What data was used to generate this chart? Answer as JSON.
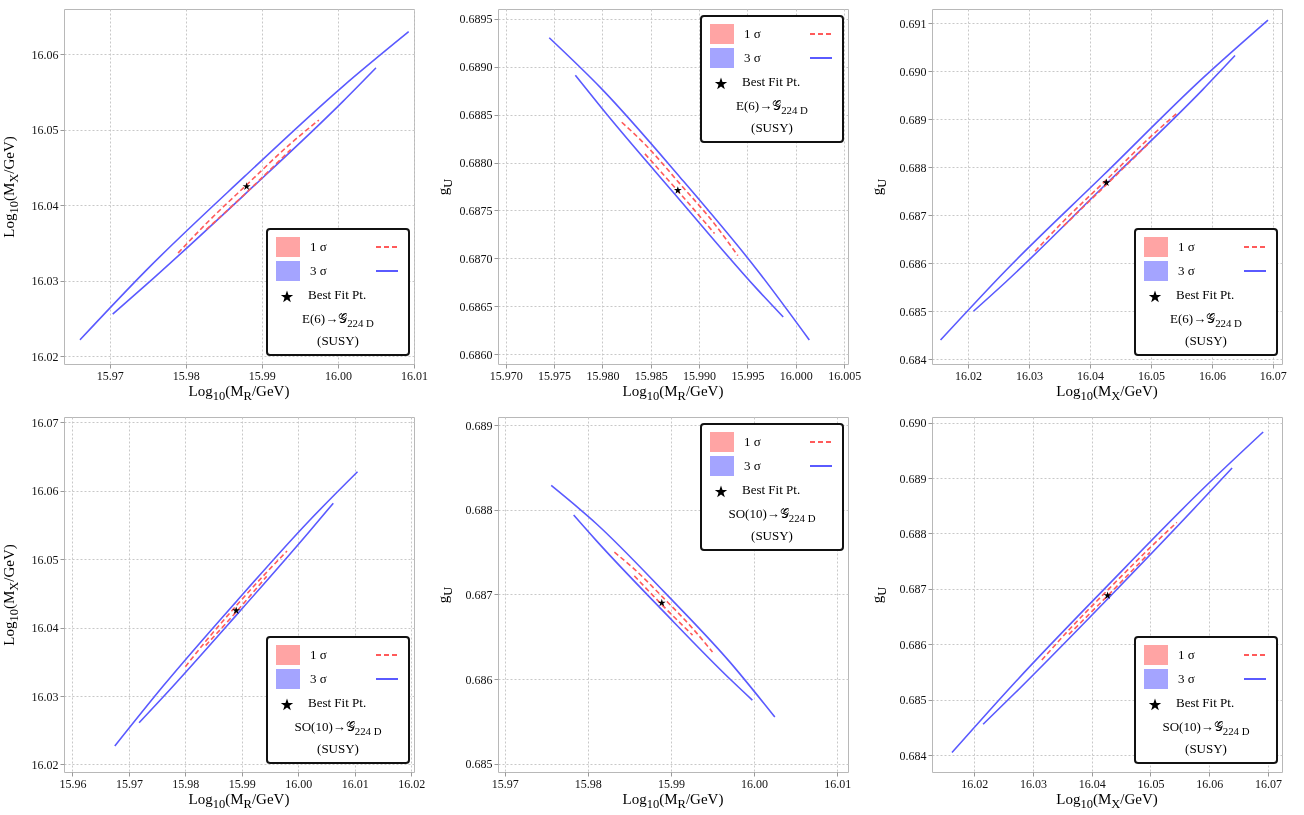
{
  "chart_data": [
    {
      "type": "line",
      "xlabel": "Log$_{10}$(M$_{R}$/GeV)",
      "ylabel": "Log$_{10}$(M$_{X}$/GeV)",
      "xlim": [
        15.964,
        16.01
      ],
      "ylim": [
        16.019,
        16.066
      ],
      "xticks": [
        15.97,
        15.98,
        15.99,
        {
          "value": 16,
          "label": "16.00"
        },
        16.01
      ],
      "yticks": [
        16.02,
        16.03,
        16.04,
        16.05,
        16.06
      ],
      "grid": true,
      "legend": "bottom right",
      "annotations": [
        "E(6)→𝒢$_{224 D}$",
        "(SUSY)"
      ],
      "series": [
        {
          "name": "1 σ",
          "type": "line",
          "line_style": "dashed",
          "color": "#ff5a5a",
          "x": [
            15.979,
            15.9827,
            15.9883,
            15.9938,
            15.9975
          ],
          "values": [
            16.0337,
            16.0376,
            16.043,
            16.0482,
            16.0513
          ]
        },
        {
          "type": "line",
          "line_style": "dashed",
          "color": "#ff5a5a",
          "x": [
            15.9827,
            15.9883,
            15.9938
          ],
          "values": [
            16.0368,
            16.042,
            16.0474
          ]
        },
        {
          "name": "3 σ",
          "type": "line",
          "line_style": "solid",
          "color": "#5a5aff",
          "x": [
            15.9661,
            15.9747,
            15.9877,
            16.0007,
            16.0093
          ],
          "values": [
            16.0222,
            16.0313,
            16.0438,
            16.0558,
            16.063
          ]
        },
        {
          "type": "line",
          "line_style": "solid",
          "color": "#5a5aff",
          "x": [
            15.9704,
            15.9747,
            15.9877,
            16.0007,
            16.005
          ],
          "values": [
            16.0256,
            16.0294,
            16.0414,
            16.0538,
            16.0582
          ]
        },
        {
          "name": "Best Fit Pt.",
          "type": "scatter",
          "marker": "star",
          "color": "#000000",
          "x": [
            15.988
          ],
          "values": [
            16.0425
          ]
        }
      ]
    },
    {
      "type": "line",
      "xlabel": "Log$_{10}$(M$_{R}$/GeV)",
      "ylabel": "g$_{U}$",
      "xlim": [
        15.9692,
        16.0054
      ],
      "ylim": [
        0.6859,
        0.6896
      ],
      "xticks": [
        {
          "value": 15.97,
          "label": "15.970"
        },
        15.975,
        {
          "value": 15.98,
          "label": "15.980"
        },
        15.985,
        {
          "value": 15.99,
          "label": "15.990"
        },
        15.995,
        {
          "value": 16,
          "label": "16.000"
        },
        16.005
      ],
      "yticks": [
        {
          "value": 0.686,
          "label": "0.6860"
        },
        0.6865,
        {
          "value": 0.687,
          "label": "0.6870"
        },
        0.6875,
        {
          "value": 0.688,
          "label": "0.6880"
        },
        0.6885,
        {
          "value": 0.689,
          "label": "0.6890"
        },
        0.6895
      ],
      "grid": true,
      "legend": "top right",
      "annotations": [
        "E(6)→𝒢$_{224 D}$",
        "(SUSY)"
      ],
      "series": [
        {
          "name": "1 σ",
          "type": "line",
          "line_style": "dashed",
          "color": "#ff5a5a",
          "x": [
            15.982,
            15.9844,
            15.988,
            15.9916,
            15.994
          ],
          "values": [
            0.68842,
            0.68819,
            0.68778,
            0.68736,
            0.68703
          ]
        },
        {
          "type": "line",
          "line_style": "dashed",
          "color": "#ff5a5a",
          "x": [
            15.9844,
            15.988,
            15.9916
          ],
          "values": [
            0.68809,
            0.68768,
            0.68726
          ]
        },
        {
          "name": "3 σ",
          "type": "line",
          "line_style": "solid",
          "color": "#5a5aff",
          "x": [
            15.9745,
            15.9799,
            15.988,
            15.996,
            16.0014
          ],
          "values": [
            0.6893,
            0.68877,
            0.68785,
            0.68688,
            0.68615
          ]
        },
        {
          "type": "line",
          "line_style": "solid",
          "color": "#5a5aff",
          "x": [
            15.9772,
            15.9799,
            15.988,
            15.996,
            15.9987
          ],
          "values": [
            0.68891,
            0.68857,
            0.68761,
            0.68668,
            0.68639
          ]
        },
        {
          "name": "Best Fit Pt.",
          "type": "scatter",
          "marker": "star",
          "color": "#000000",
          "x": [
            15.9878
          ],
          "values": [
            0.68771
          ]
        }
      ]
    },
    {
      "type": "line",
      "xlabel": "Log$_{10}$(M$_{X}$/GeV)",
      "ylabel": "g$_{U}$",
      "xlim": [
        16.0141,
        16.0715
      ],
      "ylim": [
        0.6839,
        0.6913
      ],
      "xticks": [
        16.02,
        16.03,
        16.04,
        16.05,
        16.06,
        16.07
      ],
      "yticks": [
        0.684,
        0.685,
        0.686,
        0.687,
        0.688,
        0.689,
        {
          "value": 0.69,
          "label": "0.690"
        },
        0.691
      ],
      "grid": true,
      "legend": "bottom right",
      "annotations": [
        "E(6)→𝒢$_{224 D}$",
        "(SUSY)"
      ],
      "series": [
        {
          "name": "1 σ",
          "type": "line",
          "line_style": "dashed",
          "color": "#ff5a5a",
          "x": [
            16.031,
            16.0357,
            16.0428,
            16.0498,
            16.0545
          ],
          "values": [
            0.68625,
            0.68688,
            0.68775,
            0.68862,
            0.68915
          ]
        },
        {
          "type": "line",
          "line_style": "dashed",
          "color": "#ff5a5a",
          "x": [
            16.0357,
            16.0428,
            16.0498
          ],
          "values": [
            0.68678,
            0.68765,
            0.68852
          ]
        },
        {
          "name": "3 σ",
          "type": "line",
          "line_style": "solid",
          "color": "#5a5aff",
          "x": [
            16.0155,
            16.0262,
            16.0424,
            16.0585,
            16.0692
          ],
          "values": [
            0.6844,
            0.68585,
            0.68786,
            0.68986,
            0.69107
          ]
        },
        {
          "type": "line",
          "line_style": "solid",
          "color": "#5a5aff",
          "x": [
            16.0209,
            16.0262,
            16.0424,
            16.0585,
            16.0638
          ],
          "values": [
            0.685,
            0.68561,
            0.68762,
            0.68962,
            0.69033
          ]
        },
        {
          "name": "Best Fit Pt.",
          "type": "scatter",
          "marker": "star",
          "color": "#000000",
          "x": [
            16.0427
          ],
          "values": [
            0.68768
          ]
        }
      ]
    },
    {
      "type": "line",
      "xlabel": "Log$_{10}$(M$_{R}$/GeV)",
      "ylabel": "Log$_{10}$(M$_{X}$/GeV)",
      "xlim": [
        15.9585,
        16.0205
      ],
      "ylim": [
        16.0189,
        16.0708
      ],
      "xticks": [
        15.96,
        15.97,
        15.98,
        15.99,
        {
          "value": 16,
          "label": "16.00"
        },
        16.01,
        16.02
      ],
      "yticks": [
        16.02,
        16.03,
        16.04,
        16.05,
        16.06,
        16.07
      ],
      "grid": true,
      "legend": "bottom right",
      "annotations": [
        "SO(10)→𝒢$_{224 D}$",
        "(SUSY)"
      ],
      "series": [
        {
          "name": "1 σ",
          "type": "line",
          "line_style": "dashed",
          "color": "#ff5a5a",
          "x": [
            15.98,
            15.9836,
            15.989,
            15.9944,
            15.998
          ],
          "values": [
            16.0343,
            16.038,
            16.0432,
            16.0481,
            16.0512
          ]
        },
        {
          "type": "line",
          "line_style": "dashed",
          "color": "#ff5a5a",
          "x": [
            15.9836,
            15.989,
            15.9944
          ],
          "values": [
            16.0374,
            16.0423,
            16.0475
          ]
        },
        {
          "name": "3 σ",
          "type": "line",
          "line_style": "solid",
          "color": "#5a5aff",
          "x": [
            15.9675,
            15.9761,
            15.989,
            16.0019,
            16.0105
          ],
          "values": [
            16.0227,
            16.0315,
            16.0438,
            16.0556,
            16.0628
          ]
        },
        {
          "type": "line",
          "line_style": "solid",
          "color": "#5a5aff",
          "x": [
            15.9718,
            15.9761,
            15.989,
            16.0019,
            16.0062
          ],
          "values": [
            16.0261,
            16.0299,
            16.0418,
            16.054,
            16.0582
          ]
        },
        {
          "name": "Best Fit Pt.",
          "type": "scatter",
          "marker": "star",
          "color": "#000000",
          "x": [
            15.989
          ],
          "values": [
            16.0425
          ]
        }
      ]
    },
    {
      "type": "line",
      "xlabel": "Log$_{10}$(M$_{R}$/GeV)",
      "ylabel": "g$_{U}$",
      "xlim": [
        15.9692,
        16.0113
      ],
      "ylim": [
        0.6849,
        0.6891
      ],
      "xticks": [
        15.97,
        15.98,
        15.99,
        {
          "value": 16,
          "label": "16.00"
        },
        16.01
      ],
      "yticks": [
        0.685,
        0.686,
        0.687,
        0.688,
        0.689
      ],
      "grid": true,
      "legend": "top right",
      "annotations": [
        "SO(10)→𝒢$_{224 D}$",
        "(SUSY)"
      ],
      "series": [
        {
          "name": "1 σ",
          "type": "line",
          "line_style": "dashed",
          "color": "#ff5a5a",
          "x": [
            15.9832,
            15.9856,
            15.9891,
            15.9926,
            15.995
          ],
          "values": [
            0.6875,
            0.6873,
            0.68696,
            0.6866,
            0.68632
          ]
        },
        {
          "type": "line",
          "line_style": "dashed",
          "color": "#ff5a5a",
          "x": [
            15.9856,
            15.9891,
            15.9926
          ],
          "values": [
            0.68722,
            0.68686,
            0.68652
          ]
        },
        {
          "name": "3 σ",
          "type": "line",
          "line_style": "solid",
          "color": "#5a5aff",
          "x": [
            15.9756,
            15.981,
            15.9891,
            15.9971,
            16.0025
          ],
          "values": [
            0.68829,
            0.68784,
            0.68704,
            0.6862,
            0.68555
          ]
        },
        {
          "type": "line",
          "line_style": "solid",
          "color": "#5a5aff",
          "x": [
            15.9783,
            15.981,
            15.9891,
            15.9971,
            15.9998
          ],
          "values": [
            0.68794,
            0.68764,
            0.6868,
            0.686,
            0.68575
          ]
        },
        {
          "name": "Best Fit Pt.",
          "type": "scatter",
          "marker": "star",
          "color": "#000000",
          "x": [
            15.9889
          ],
          "values": [
            0.6869
          ]
        }
      ]
    },
    {
      "type": "line",
      "xlabel": "Log$_{10}$(M$_{X}$/GeV)",
      "ylabel": "g$_{U}$",
      "xlim": [
        16.0128,
        16.0724
      ],
      "ylim": [
        0.6837,
        0.6901
      ],
      "xticks": [
        16.02,
        16.03,
        16.04,
        16.05,
        16.06,
        16.07
      ],
      "yticks": [
        0.684,
        0.685,
        0.686,
        0.687,
        0.688,
        0.689,
        {
          "value": 0.69,
          "label": "0.690"
        }
      ],
      "grid": true,
      "legend": "bottom right",
      "annotations": [
        "SO(10)→𝒢$_{224 D}$",
        "(SUSY)"
      ],
      "series": [
        {
          "name": "1 σ",
          "type": "line",
          "line_style": "dashed",
          "color": "#ff5a5a",
          "x": [
            16.0315,
            16.0361,
            16.043,
            16.0499,
            16.0545
          ],
          "values": [
            0.68572,
            0.68626,
            0.68701,
            0.68774,
            0.6882
          ]
        },
        {
          "type": "line",
          "line_style": "dashed",
          "color": "#ff5a5a",
          "x": [
            16.0361,
            16.043,
            16.0499
          ],
          "values": [
            0.68618,
            0.68691,
            0.68766
          ]
        },
        {
          "name": "3 σ",
          "type": "line",
          "line_style": "solid",
          "color": "#5a5aff",
          "x": [
            16.0162,
            16.0268,
            16.0427,
            16.0586,
            16.0692
          ],
          "values": [
            0.68405,
            0.6853,
            0.68706,
            0.68877,
            0.68983
          ]
        },
        {
          "type": "line",
          "line_style": "solid",
          "color": "#5a5aff",
          "x": [
            16.0215,
            16.0268,
            16.0427,
            16.0586,
            16.0639
          ],
          "values": [
            0.68456,
            0.68511,
            0.68682,
            0.68858,
            0.68918
          ]
        },
        {
          "name": "Best Fit Pt.",
          "type": "scatter",
          "marker": "star",
          "color": "#000000",
          "x": [
            16.0427
          ],
          "values": [
            0.68688
          ]
        }
      ]
    }
  ]
}
